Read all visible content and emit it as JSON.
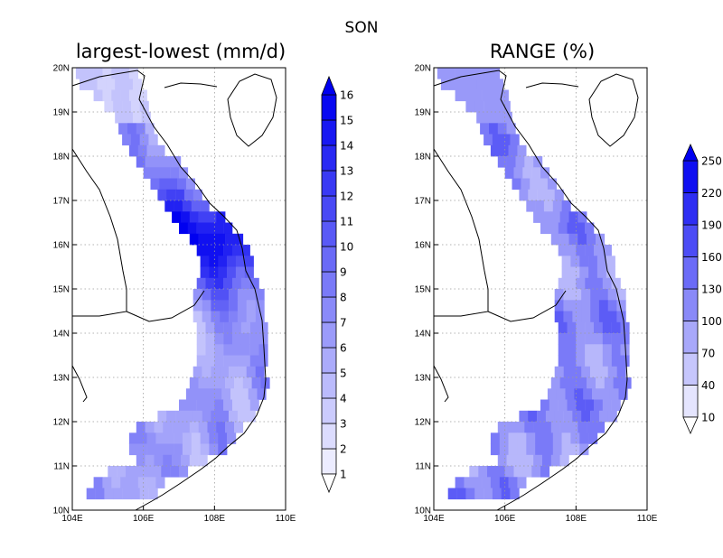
{
  "season_label": "SON",
  "colors": {
    "land_fill": "#ffffff",
    "coast_line": "#000000",
    "grid_line": "#9a9a9a",
    "palette_light": "#f4f4ff",
    "palette_dark": "#0000f0"
  },
  "panels": [
    {
      "id": "left",
      "title": "largest-lowest (mm/d)",
      "xticks": [
        "104E",
        "106E",
        "108E",
        "110E"
      ],
      "yticks": [
        "10N",
        "11N",
        "12N",
        "13N",
        "14N",
        "15N",
        "16N",
        "17N",
        "18N",
        "19N",
        "20N"
      ],
      "lon_range": [
        104,
        110
      ],
      "lat_range": [
        10,
        20
      ],
      "colorbar": {
        "levels": [
          "1",
          "2",
          "3",
          "4",
          "5",
          "6",
          "7",
          "8",
          "9",
          "10",
          "11",
          "12",
          "13",
          "14",
          "15",
          "16"
        ],
        "level_values": [
          1,
          2,
          3,
          4,
          5,
          6,
          7,
          8,
          9,
          10,
          11,
          12,
          13,
          14,
          15,
          16
        ]
      }
    },
    {
      "id": "right",
      "title": "RANGE (%)",
      "xticks": [
        "104E",
        "106E",
        "108E",
        "110E"
      ],
      "yticks": [
        "10N",
        "11N",
        "12N",
        "13N",
        "14N",
        "15N",
        "16N",
        "17N",
        "18N",
        "19N",
        "20N"
      ],
      "lon_range": [
        104,
        110
      ],
      "lat_range": [
        10,
        20
      ],
      "colorbar": {
        "levels": [
          "10",
          "40",
          "70",
          "100",
          "130",
          "160",
          "190",
          "220",
          "250"
        ],
        "level_values": [
          10,
          40,
          70,
          100,
          130,
          160,
          190,
          220,
          250
        ]
      }
    }
  ]
}
